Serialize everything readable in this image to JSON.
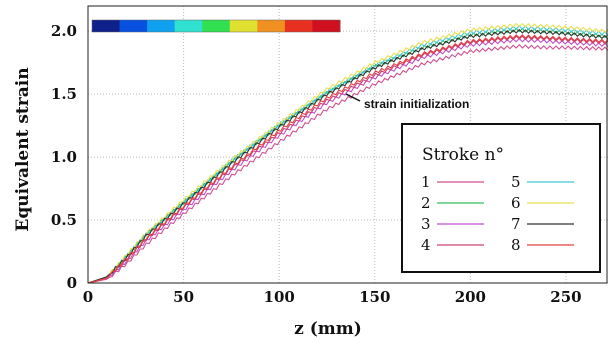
{
  "chart_data": {
    "type": "line",
    "xlabel": "z (mm)",
    "ylabel": "Equivalent strain",
    "xlim": [
      0,
      272
    ],
    "ylim": [
      0,
      2.2
    ],
    "x_ticks": [
      "0",
      "50",
      "100",
      "150",
      "200",
      "250"
    ],
    "y_ticks": [
      "0",
      "0.5",
      "1.0",
      "1.5",
      "2.0"
    ],
    "grid": true,
    "legend_title": "Stroke n°",
    "legend_position": "bottom-right",
    "annotation": "strain initialization",
    "colorbar_colors": [
      "#10208a",
      "#0850e0",
      "#10a0f0",
      "#30e0d0",
      "#30e050",
      "#e0e030",
      "#f09020",
      "#e83020",
      "#d01020"
    ],
    "series": [
      {
        "name": "1",
        "color": "#d05090",
        "x": [
          0,
          10,
          20,
          30,
          50,
          75,
          100,
          125,
          150,
          175,
          200,
          225,
          240,
          250,
          272
        ],
        "y": [
          0,
          0.03,
          0.15,
          0.3,
          0.55,
          0.85,
          1.12,
          1.38,
          1.58,
          1.74,
          1.84,
          1.88,
          1.87,
          1.87,
          1.86
        ]
      },
      {
        "name": "2",
        "color": "#30c060",
        "x": [
          0,
          10,
          20,
          30,
          50,
          75,
          100,
          125,
          150,
          175,
          200,
          225,
          240,
          250,
          272
        ],
        "y": [
          0,
          0.05,
          0.21,
          0.38,
          0.64,
          0.96,
          1.25,
          1.51,
          1.72,
          1.87,
          1.97,
          2.01,
          2.0,
          1.99,
          1.96
        ]
      },
      {
        "name": "3",
        "color": "#c050d0",
        "x": [
          0,
          10,
          20,
          30,
          50,
          75,
          100,
          125,
          150,
          175,
          200,
          225,
          240,
          250,
          272
        ],
        "y": [
          0,
          0.04,
          0.17,
          0.33,
          0.58,
          0.89,
          1.17,
          1.43,
          1.63,
          1.79,
          1.89,
          1.93,
          1.92,
          1.91,
          1.89
        ]
      },
      {
        "name": "4",
        "color": "#d04070",
        "x": [
          0,
          10,
          20,
          30,
          50,
          75,
          100,
          125,
          150,
          175,
          200,
          225,
          240,
          250,
          272
        ],
        "y": [
          0,
          0.04,
          0.18,
          0.34,
          0.6,
          0.91,
          1.19,
          1.45,
          1.65,
          1.81,
          1.91,
          1.95,
          1.94,
          1.93,
          1.91
        ]
      },
      {
        "name": "5",
        "color": "#40c8d8",
        "x": [
          0,
          10,
          20,
          30,
          50,
          75,
          100,
          125,
          150,
          175,
          200,
          225,
          240,
          250,
          272
        ],
        "y": [
          0,
          0.05,
          0.21,
          0.38,
          0.64,
          0.97,
          1.26,
          1.52,
          1.73,
          1.89,
          1.99,
          2.03,
          2.02,
          2.01,
          1.98
        ]
      },
      {
        "name": "6",
        "color": "#e8e050",
        "x": [
          0,
          10,
          20,
          30,
          50,
          75,
          100,
          125,
          150,
          175,
          200,
          225,
          240,
          250,
          272
        ],
        "y": [
          0,
          0.05,
          0.22,
          0.39,
          0.66,
          0.98,
          1.27,
          1.54,
          1.75,
          1.91,
          2.01,
          2.05,
          2.04,
          2.03,
          2.0
        ]
      },
      {
        "name": "7",
        "color": "#303030",
        "x": [
          0,
          10,
          20,
          30,
          50,
          75,
          100,
          125,
          150,
          175,
          200,
          225,
          240,
          250,
          272
        ],
        "y": [
          0,
          0.05,
          0.2,
          0.37,
          0.63,
          0.95,
          1.24,
          1.5,
          1.71,
          1.86,
          1.96,
          2.0,
          1.99,
          1.98,
          1.95
        ]
      },
      {
        "name": "8",
        "color": "#e04040",
        "x": [
          0,
          10,
          20,
          30,
          50,
          75,
          100,
          125,
          150,
          175,
          200,
          225,
          240,
          250,
          272
        ],
        "y": [
          0,
          0.04,
          0.19,
          0.35,
          0.61,
          0.92,
          1.21,
          1.47,
          1.67,
          1.82,
          1.92,
          1.96,
          1.95,
          1.94,
          1.92
        ]
      }
    ]
  }
}
